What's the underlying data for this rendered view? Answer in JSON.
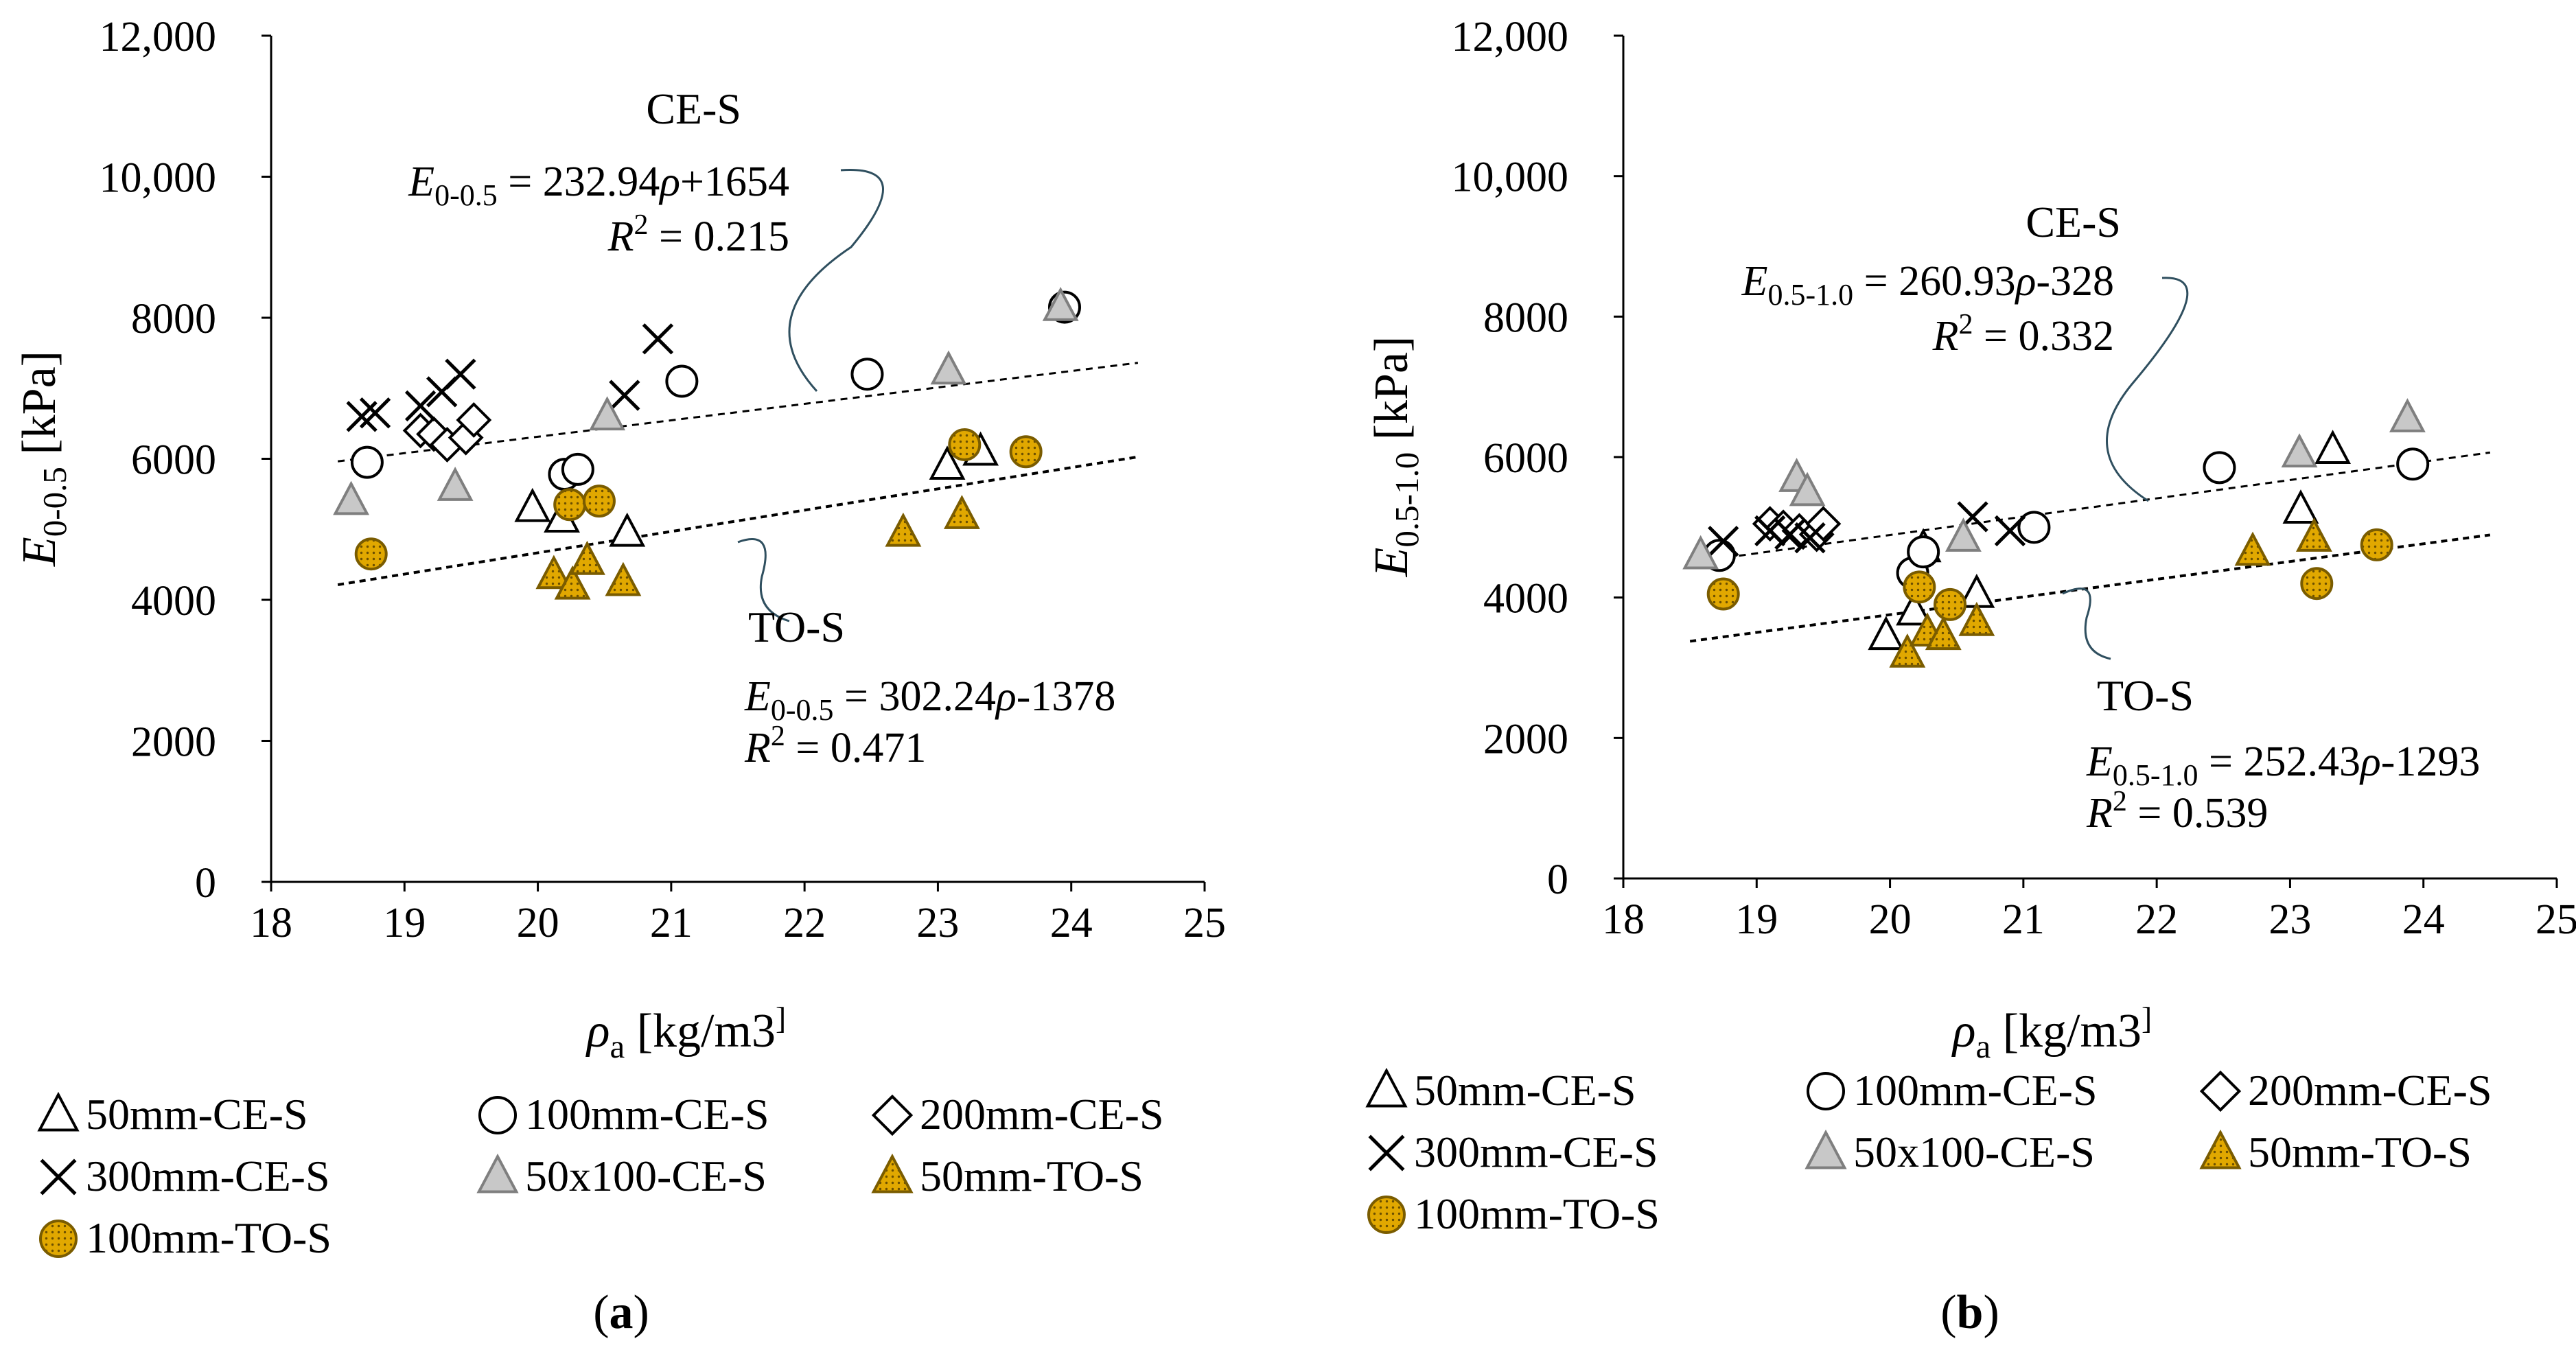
{
  "markers": {
    "50mm-CE-S": {
      "shape": "triangle",
      "fill": "#ffffff",
      "stroke": "#000000"
    },
    "100mm-CE-S": {
      "shape": "circle",
      "fill": "#ffffff",
      "stroke": "#000000"
    },
    "200mm-CE-S": {
      "shape": "diamond",
      "fill": "#ffffff",
      "stroke": "#000000"
    },
    "300mm-CE-S": {
      "shape": "cross",
      "fill": "none",
      "stroke": "#000000"
    },
    "50x100-CE-S": {
      "shape": "triangle",
      "fill": "#c8c8c8",
      "stroke": "#7f7f7f"
    },
    "50mm-TO-S": {
      "shape": "triangle",
      "fill": "#e1a800",
      "stroke": "#7a5c00",
      "dotted": true
    },
    "100mm-TO-S": {
      "shape": "circle",
      "fill": "#e1a800",
      "stroke": "#7a5c00",
      "dotted": true
    }
  },
  "chart_data": [
    {
      "panel": "a",
      "panel_label": "(a)",
      "type": "scatter",
      "ylabel": "E0-0.5 [kPa]",
      "xlabel": "ρa [kg/m3]",
      "xlim": [
        18,
        25
      ],
      "ylim": [
        0,
        12000
      ],
      "xticks": [
        "18",
        "19",
        "20",
        "21",
        "22",
        "23",
        "24",
        "25"
      ],
      "yticks": [
        "0",
        "2000",
        "4000",
        "6000",
        "8000",
        "10,000",
        "12,000"
      ],
      "grid": false,
      "legend_position": "bottom",
      "legend_entries": [
        "50mm-CE-S",
        "100mm-CE-S",
        "200mm-CE-S",
        "300mm-CE-S",
        "50x100-CE-S",
        "50mm-TO-S",
        "100mm-TO-S"
      ],
      "series": [
        {
          "name": "50mm-CE-S",
          "x": [
            19.96,
            20.18,
            20.67,
            23.07,
            23.32
          ],
          "y": [
            5300,
            5150,
            4950,
            5900,
            6100
          ]
        },
        {
          "name": "100mm-CE-S",
          "x": [
            18.72,
            20.2,
            20.3,
            21.08,
            22.47,
            23.95
          ],
          "y": [
            5950,
            5780,
            5850,
            7100,
            7200,
            8150
          ]
        },
        {
          "name": "200mm-CE-S",
          "x": [
            19.12,
            19.22,
            19.32,
            19.46,
            19.52
          ],
          "y": [
            6400,
            6350,
            6200,
            6300,
            6550
          ]
        },
        {
          "name": "300mm-CE-S",
          "x": [
            18.68,
            18.78,
            19.12,
            19.28,
            19.42,
            20.65,
            20.9
          ],
          "y": [
            6600,
            6650,
            6750,
            6950,
            7200,
            6900,
            7700
          ]
        },
        {
          "name": "50x100-CE-S",
          "x": [
            18.6,
            19.38,
            20.52,
            23.08,
            23.92
          ],
          "y": [
            5400,
            5600,
            6600,
            7250,
            8150
          ]
        },
        {
          "name": "50mm-TO-S",
          "x": [
            20.12,
            20.26,
            20.37,
            20.64,
            22.74,
            23.18
          ],
          "y": [
            4350,
            4200,
            4550,
            4250,
            4950,
            5200
          ]
        },
        {
          "name": "100mm-TO-S",
          "x": [
            18.75,
            20.24,
            20.46,
            23.2,
            23.66
          ],
          "y": [
            4650,
            5350,
            5400,
            6200,
            6100
          ]
        }
      ],
      "trendlines": [
        {
          "group": "CE-S",
          "label": "CE-S",
          "equation_lhs": "E",
          "equation_sub": "0-0.5",
          "equation_rhs": " = 232.94",
          "equation_var": "ρ",
          "equation_tail": "+1654",
          "r2_value": " = 0.215",
          "slope": 232.94,
          "intercept": 1654,
          "x_range": [
            18.5,
            24.5
          ]
        },
        {
          "group": "TO-S",
          "label": "TO-S",
          "equation_lhs": "E",
          "equation_sub": "0-0.5",
          "equation_rhs": " = 302.24",
          "equation_var": "ρ",
          "equation_tail": "-1378",
          "r2_value": " = 0.471",
          "slope": 302.24,
          "intercept": -1378,
          "x_range": [
            18.5,
            24.5
          ]
        }
      ]
    },
    {
      "panel": "b",
      "panel_label": "(b)",
      "type": "scatter",
      "ylabel": "E0.5-1.0 [kPa]",
      "xlabel": "ρa [kg/m3]",
      "xlim": [
        18,
        25
      ],
      "ylim": [
        0,
        12000
      ],
      "xticks": [
        "18",
        "19",
        "20",
        "21",
        "22",
        "23",
        "24",
        "25"
      ],
      "yticks": [
        "0",
        "2000",
        "4000",
        "6000",
        "8000",
        "10,000",
        "12,000"
      ],
      "grid": false,
      "legend_position": "bottom",
      "legend_entries": [
        "50mm-CE-S",
        "100mm-CE-S",
        "200mm-CE-S",
        "300mm-CE-S",
        "50x100-CE-S",
        "50mm-TO-S",
        "100mm-TO-S"
      ],
      "series": [
        {
          "name": "50mm-CE-S",
          "x": [
            19.97,
            20.18,
            20.25,
            20.65,
            23.08,
            23.32
          ],
          "y": [
            3450,
            3800,
            4700,
            4050,
            5250,
            6100
          ]
        },
        {
          "name": "100mm-CE-S",
          "x": [
            18.72,
            20.17,
            20.25,
            21.08,
            22.47,
            23.92
          ],
          "y": [
            4600,
            4350,
            4650,
            5000,
            5850,
            5900
          ]
        },
        {
          "name": "200mm-CE-S",
          "x": [
            19.1,
            19.2,
            19.32,
            19.45,
            19.5
          ],
          "y": [
            5050,
            5000,
            4950,
            4900,
            5050
          ]
        },
        {
          "name": "300mm-CE-S",
          "x": [
            18.75,
            19.1,
            19.25,
            19.4,
            20.62,
            20.9
          ],
          "y": [
            4800,
            4950,
            4900,
            4850,
            5150,
            4950
          ]
        },
        {
          "name": "50x100-CE-S",
          "x": [
            18.58,
            19.3,
            19.38,
            20.55,
            23.07,
            23.88
          ],
          "y": [
            4600,
            5700,
            5500,
            4850,
            6050,
            6550
          ]
        },
        {
          "name": "50mm-TO-S",
          "x": [
            20.13,
            20.28,
            20.4,
            20.65,
            22.72,
            23.18
          ],
          "y": [
            3200,
            3500,
            3450,
            3650,
            4650,
            4850
          ]
        },
        {
          "name": "100mm-TO-S",
          "x": [
            18.75,
            20.22,
            20.45,
            23.2,
            23.65
          ],
          "y": [
            4050,
            4150,
            3900,
            4200,
            4750
          ]
        }
      ],
      "trendlines": [
        {
          "group": "CE-S",
          "label": "CE-S",
          "equation_lhs": "E",
          "equation_sub": "0.5-1.0",
          "equation_rhs": " = 260.93",
          "equation_var": "ρ",
          "equation_tail": "-328",
          "r2_value": " = 0.332",
          "slope": 260.93,
          "intercept": -328,
          "x_range": [
            18.5,
            24.5
          ]
        },
        {
          "group": "TO-S",
          "label": "TO-S",
          "equation_lhs": "E",
          "equation_sub": "0.5-1.0",
          "equation_rhs": " = 252.43",
          "equation_var": "ρ",
          "equation_tail": "-1293",
          "r2_value": " = 0.539",
          "slope": 252.43,
          "intercept": -1293,
          "x_range": [
            18.5,
            24.5
          ]
        }
      ]
    }
  ]
}
